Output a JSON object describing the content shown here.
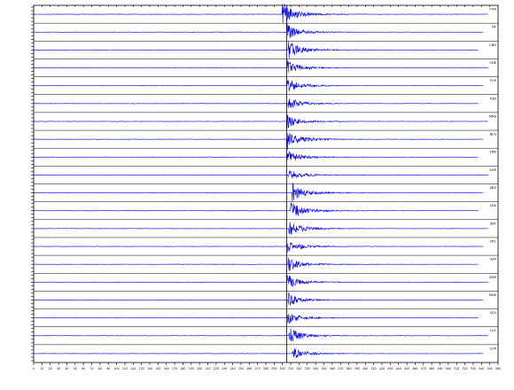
{
  "chart_data": {
    "type": "line",
    "title": "",
    "xlabel": "",
    "ylabel": "",
    "x_ticks": [
      "0",
      "10",
      "20",
      "30",
      "40",
      "50",
      "60",
      "70",
      "80",
      "90",
      "100",
      "110",
      "120",
      "130",
      "140",
      "150",
      "160",
      "170",
      "180",
      "190",
      "200",
      "210",
      "220",
      "230",
      "240",
      "250",
      "260",
      "270",
      "280",
      "290",
      "300",
      "310",
      "320",
      "330",
      "340",
      "350",
      "360",
      "370",
      "380",
      "390",
      "400",
      "410",
      "420",
      "430",
      "440",
      "450",
      "460",
      "470",
      "480",
      "490",
      "500",
      "510",
      "520",
      "530",
      "540",
      "550",
      "560"
    ],
    "xlim": [
      0,
      560
    ],
    "grid": false,
    "colors": {
      "trace": "#0000dd",
      "axes": "#000000"
    },
    "marker_time": 305,
    "stations": [
      {
        "name": "FON",
        "onset": 300,
        "amp": 1.0
      },
      {
        "name": "FIF",
        "onset": 305,
        "amp": 0.7
      },
      {
        "name": "CNH",
        "onset": 307,
        "amp": 0.8
      },
      {
        "name": "CNE",
        "onset": 306,
        "amp": 0.6
      },
      {
        "name": "FUS",
        "onset": 306,
        "amp": 0.6
      },
      {
        "name": "PZN",
        "onset": 307,
        "amp": 0.6
      },
      {
        "name": "MRB",
        "onset": 305,
        "amp": 0.6
      },
      {
        "name": "BLG",
        "onset": 306,
        "amp": 0.8
      },
      {
        "name": "TRN",
        "onset": 306,
        "amp": 0.6
      },
      {
        "name": "SOR",
        "onset": 307,
        "amp": 0.6
      },
      {
        "name": "ARZ",
        "onset": 312,
        "amp": 0.8
      },
      {
        "name": "CRA",
        "onset": 310,
        "amp": 0.8
      },
      {
        "name": "SNT",
        "onset": 308,
        "amp": 0.7
      },
      {
        "name": "NTL",
        "onset": 306,
        "amp": 0.6
      },
      {
        "name": "VZR",
        "onset": 307,
        "amp": 0.6
      },
      {
        "name": "SMR",
        "onset": 305,
        "amp": 0.7
      },
      {
        "name": "MNS",
        "onset": 307,
        "amp": 0.6
      },
      {
        "name": "SCU",
        "onset": 306,
        "amp": 0.6
      },
      {
        "name": "LUC",
        "onset": 308,
        "amp": 0.7
      },
      {
        "name": "COP",
        "onset": 312,
        "amp": 0.6
      }
    ]
  }
}
